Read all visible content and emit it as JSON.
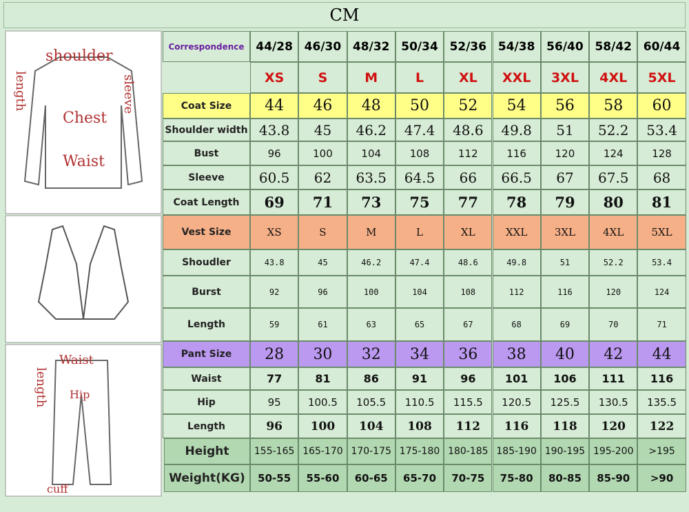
{
  "title": "CM",
  "diagrams": {
    "coat": [
      "shoulder",
      "length",
      "sleeve",
      "Chest",
      "Waist"
    ],
    "pant": [
      "Waist",
      "length",
      "Hip",
      "cuff"
    ]
  },
  "table": {
    "header": {
      "label": "Correspondence",
      "cells": [
        "44/28",
        "46/30",
        "48/32",
        "50/34",
        "52/36",
        "54/38",
        "56/40",
        "58/42",
        "60/44"
      ]
    },
    "rows": [
      {
        "cells": [
          "XS",
          "S",
          "M",
          "L",
          "XL",
          "XXL",
          "3XL",
          "4XL",
          "5XL"
        ]
      },
      {
        "label": "Coat Size",
        "cells": [
          "44",
          "46",
          "48",
          "50",
          "52",
          "54",
          "56",
          "58",
          "60"
        ]
      },
      {
        "label": "Shoulder width",
        "cells": [
          "43.8",
          "45",
          "46.2",
          "47.4",
          "48.6",
          "49.8",
          "51",
          "52.2",
          "53.4"
        ]
      },
      {
        "label": "Bust",
        "cells": [
          "96",
          "100",
          "104",
          "108",
          "112",
          "116",
          "120",
          "124",
          "128"
        ]
      },
      {
        "label": "Sleeve",
        "cells": [
          "60.5",
          "62",
          "63.5",
          "64.5",
          "66",
          "66.5",
          "67",
          "67.5",
          "68"
        ]
      },
      {
        "label": "Coat Length",
        "cells": [
          "69",
          "71",
          "73",
          "75",
          "77",
          "78",
          "79",
          "80",
          "81"
        ]
      },
      {
        "label": "Vest Size",
        "cells": [
          "XS",
          "S",
          "M",
          "L",
          "XL",
          "XXL",
          "3XL",
          "4XL",
          "5XL"
        ]
      },
      {
        "label": "Shoudler",
        "cells": [
          "43.8",
          "45",
          "46.2",
          "47.4",
          "48.6",
          "49.8",
          "51",
          "52.2",
          "53.4"
        ]
      },
      {
        "label": "Burst",
        "cells": [
          "92",
          "96",
          "100",
          "104",
          "108",
          "112",
          "116",
          "120",
          "124"
        ]
      },
      {
        "label": "Length",
        "cells": [
          "59",
          "61",
          "63",
          "65",
          "67",
          "68",
          "69",
          "70",
          "71"
        ]
      },
      {
        "label": "Pant Size",
        "cells": [
          "28",
          "30",
          "32",
          "34",
          "36",
          "38",
          "40",
          "42",
          "44"
        ]
      },
      {
        "label": "Waist",
        "cells": [
          "77",
          "81",
          "86",
          "91",
          "96",
          "101",
          "106",
          "111",
          "116"
        ]
      },
      {
        "label": "Hip",
        "cells": [
          "95",
          "100.5",
          "105.5",
          "110.5",
          "115.5",
          "120.5",
          "125.5",
          "130.5",
          "135.5"
        ]
      },
      {
        "label": "Length",
        "cells": [
          "96",
          "100",
          "104",
          "108",
          "112",
          "116",
          "118",
          "120",
          "122"
        ]
      },
      {
        "label": "Height",
        "cells": [
          "155-165",
          "165-170",
          "170-175",
          "175-180",
          "180-185",
          "185-190",
          "190-195",
          "195-200",
          ">195"
        ]
      },
      {
        "label": "Weight(KG)",
        "cells": [
          "50-55",
          "55-60",
          "60-65",
          "65-70",
          "70-75",
          "75-80",
          "80-85",
          "85-90",
          ">90"
        ]
      }
    ]
  }
}
